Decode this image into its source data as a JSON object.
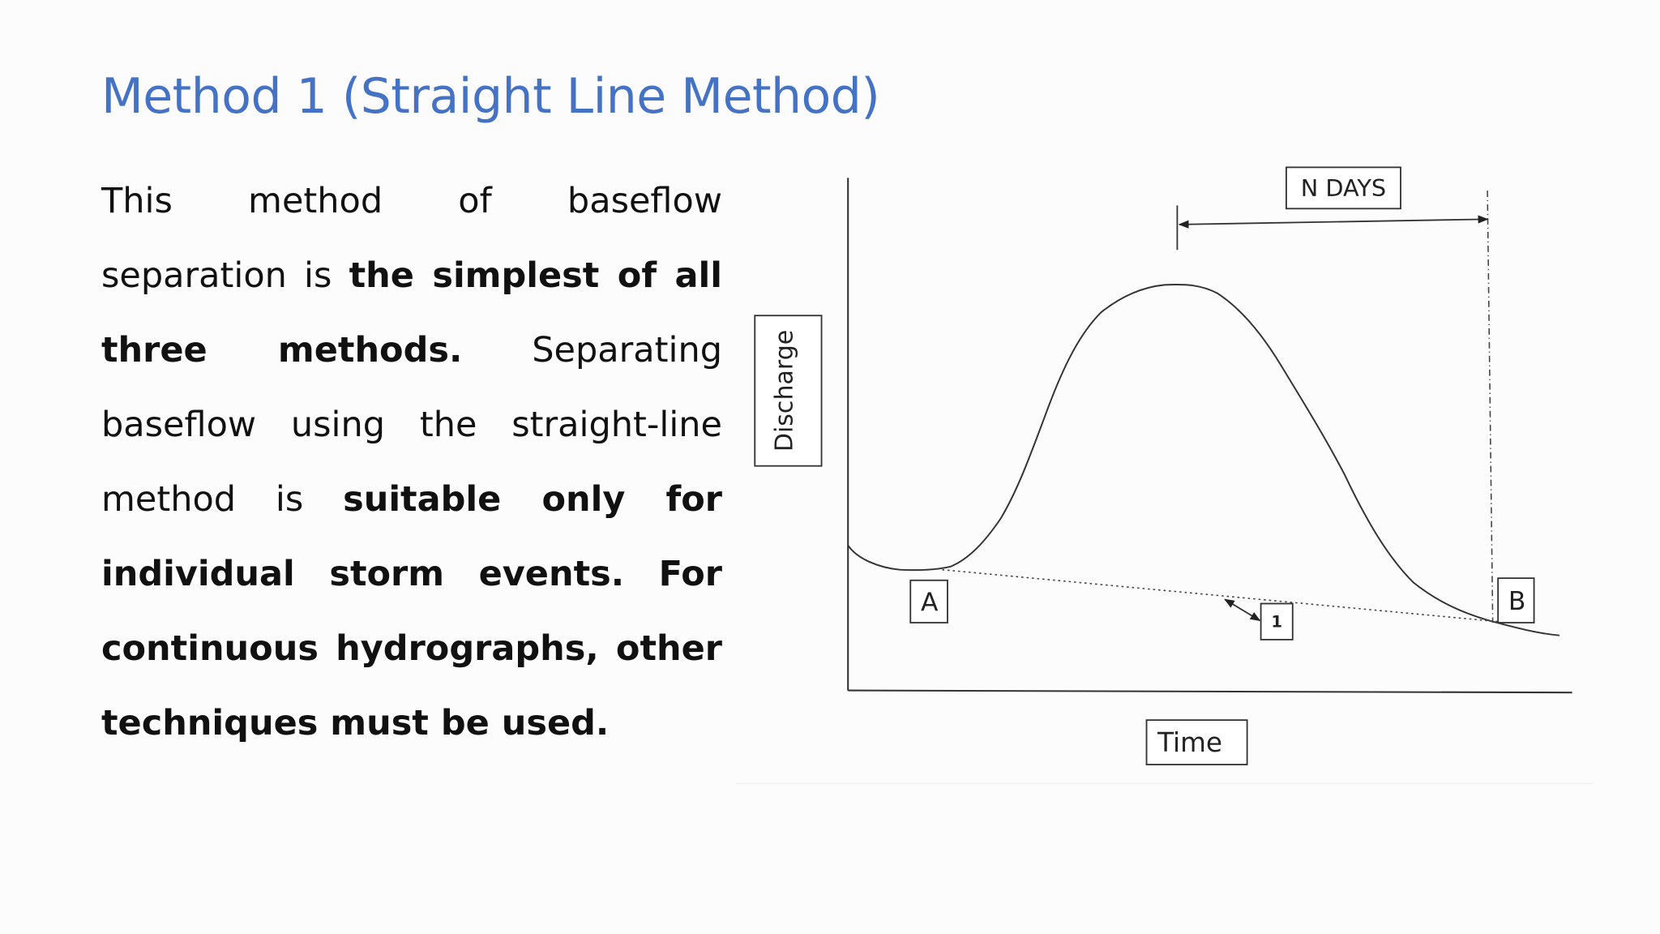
{
  "title": "Method 1 (Straight Line Method)",
  "paragraph": {
    "runs": [
      "This method of baseflow separation is ",
      "the simplest of all three methods.",
      " Separating baseflow using the straight-line method is ",
      "suitable only for individual storm events. For continuous hydrographs, other techniques must be used."
    ]
  },
  "diagram": {
    "y_label": "Discharge",
    "x_label": "Time",
    "duration_label": "N DAYS",
    "point_a": "A",
    "point_b": "B",
    "slope_label": "1"
  }
}
